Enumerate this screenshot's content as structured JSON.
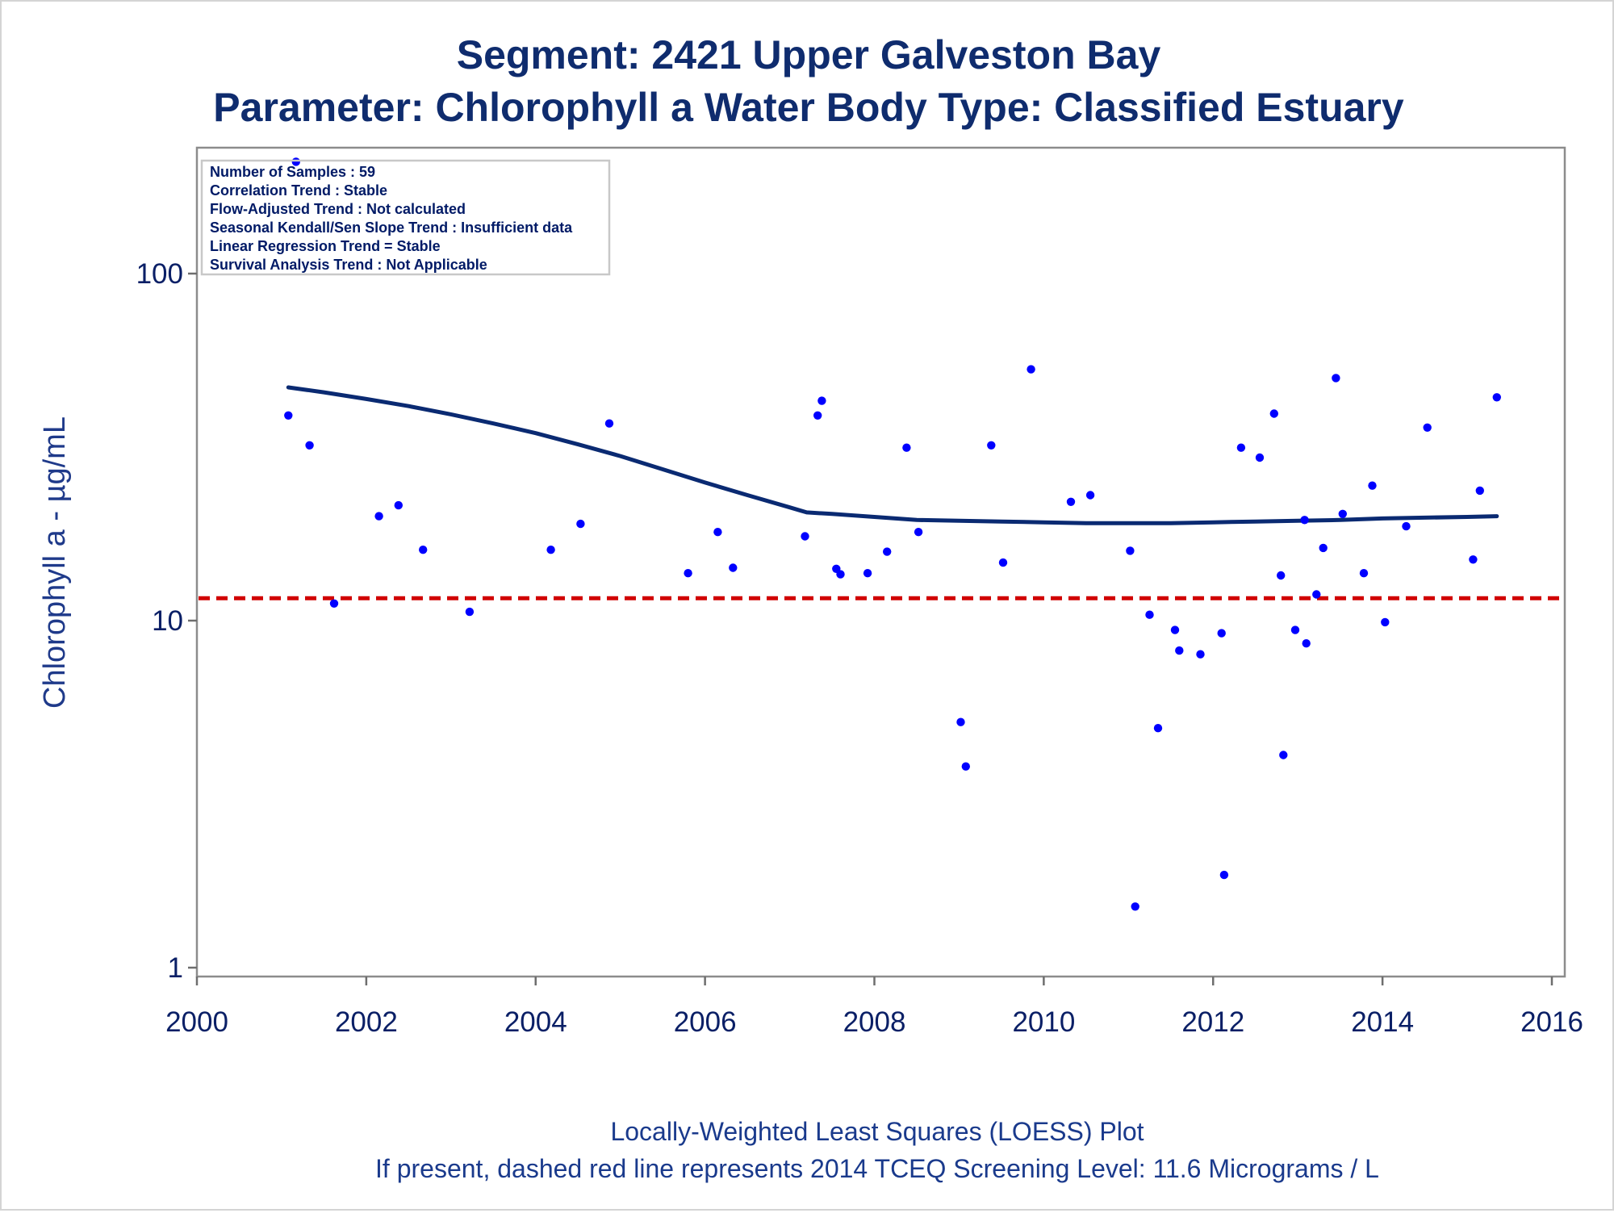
{
  "chart_data": {
    "type": "scatter",
    "title": "Segment: 2421  Upper Galveston Bay",
    "subtitle": "Parameter: Chlorophyll a   Water Body Type: Classified Estuary",
    "xlabel": "",
    "ylabel": "Chlorophyll a -  µg/mL",
    "x_scale": "linear",
    "y_scale": "log",
    "xlim": [
      2000,
      2016
    ],
    "ylim": [
      1,
      220
    ],
    "x_ticks": [
      2000,
      2002,
      2004,
      2006,
      2008,
      2010,
      2012,
      2014,
      2016
    ],
    "x_tick_labels": [
      "2000",
      "2002",
      "2004",
      "2006",
      "2008",
      "2010",
      "2012",
      "2014",
      "2016"
    ],
    "y_ticks": [
      1,
      10,
      100
    ],
    "y_tick_labels": [
      "1",
      "10",
      "100"
    ],
    "grid": false,
    "point_color": "#0000ff",
    "series": [
      {
        "kind": "points",
        "x": [
          2001.08,
          2001.17,
          2001.33,
          2001.62,
          2002.15,
          2002.38,
          2002.67,
          2003.22,
          2004.18,
          2004.53,
          2004.87,
          2005.8,
          2006.15,
          2006.33,
          2007.18,
          2007.33,
          2007.38,
          2007.55,
          2007.6,
          2007.92,
          2008.15,
          2008.38,
          2008.52,
          2009.02,
          2009.08,
          2009.38,
          2009.52,
          2009.85,
          2010.32,
          2010.55,
          2011.02,
          2011.08,
          2011.25,
          2011.35,
          2011.55,
          2011.6,
          2011.85,
          2012.1,
          2012.13,
          2012.33,
          2012.55,
          2012.72,
          2012.8,
          2012.83,
          2012.97,
          2013.08,
          2013.1,
          2013.22,
          2013.3,
          2013.45,
          2013.53,
          2013.78,
          2013.88,
          2014.03,
          2014.28,
          2014.53,
          2015.07,
          2015.15,
          2015.35
        ],
        "y": [
          39,
          210,
          32,
          11.2,
          20,
          21.5,
          16,
          10.6,
          16,
          19,
          37,
          13.7,
          18,
          14.2,
          17.5,
          39,
          43,
          14.1,
          13.6,
          13.7,
          15.8,
          31.5,
          18,
          5.1,
          3.8,
          32,
          14.7,
          53,
          22,
          23,
          15.9,
          1.5,
          10.4,
          4.9,
          9.4,
          8.2,
          8.0,
          9.2,
          1.85,
          31.5,
          29.5,
          39.5,
          13.5,
          4.1,
          9.4,
          19.5,
          8.6,
          11.9,
          16.2,
          50,
          20.3,
          13.7,
          24.5,
          9.9,
          18.7,
          36,
          15,
          23.7,
          44
        ]
      },
      {
        "kind": "line",
        "name": "LOESS",
        "color": "#0a2a72",
        "x": [
          2001.08,
          2001.5,
          2002.0,
          2002.5,
          2003.0,
          2003.5,
          2004.0,
          2004.5,
          2005.0,
          2005.5,
          2006.0,
          2006.5,
          2007.0,
          2007.2,
          2007.5,
          2008.0,
          2008.5,
          2009.0,
          2009.5,
          2010.0,
          2010.5,
          2011.0,
          2011.5,
          2012.0,
          2012.5,
          2013.0,
          2013.5,
          2014.0,
          2014.5,
          2015.0,
          2015.35
        ],
        "y": [
          47,
          45.5,
          43.5,
          41.5,
          39.3,
          37,
          34.7,
          32.2,
          29.8,
          27.3,
          25,
          23,
          21.2,
          20.5,
          20.3,
          19.9,
          19.5,
          19.4,
          19.3,
          19.2,
          19.1,
          19.1,
          19.1,
          19.2,
          19.3,
          19.4,
          19.5,
          19.7,
          19.8,
          19.9,
          20.0
        ]
      },
      {
        "kind": "hline",
        "name": "2014 TCEQ Screening Level",
        "color": "#d10000",
        "y": 11.6
      }
    ]
  },
  "stats_box": [
    "Number of Samples : 59",
    "Correlation Trend : Stable",
    "Flow-Adjusted Trend : Not calculated",
    "Seasonal Kendall/Sen Slope Trend : Insufficient data",
    "Linear Regression Trend = Stable",
    "Survival Analysis Trend : Not Applicable"
  ],
  "footnotes": [
    "Locally-Weighted Least Squares (LOESS) Plot",
    "If present, dashed red line represents 2014 TCEQ Screening Level: 11.6 Micrograms / L"
  ]
}
